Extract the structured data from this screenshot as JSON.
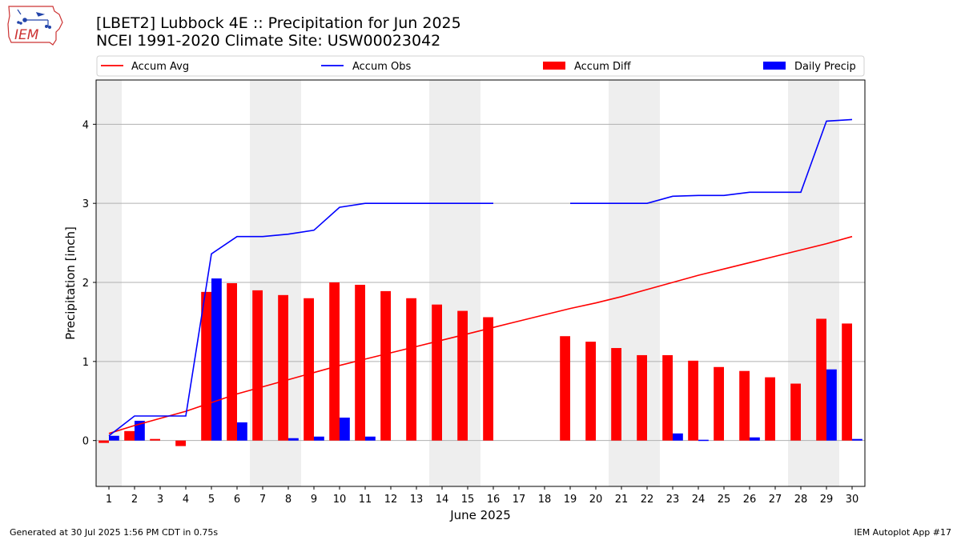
{
  "header": {
    "title_line1": "[LBET2] Lubbock 4E :: Precipitation for Jun 2025",
    "title_line2": "NCEI 1991-2020 Climate Site: USW00023042",
    "logo_text": "IEM"
  },
  "footer": {
    "generated": "Generated at 30 Jul 2025 1:56 PM CDT in 0.75s",
    "app": "IEM Autoplot App #17"
  },
  "colors": {
    "avg": "#ff0000",
    "obs": "#0000ff",
    "diff": "#ff0000",
    "daily": "#0000ff",
    "weekend_band": "#eeeeee",
    "grid": "#b0b0b0"
  },
  "chart_data": {
    "type": "bar",
    "xlabel": "June 2025",
    "ylabel": "Precipitation [inch]",
    "ylim": [
      -0.58,
      4.56
    ],
    "yticks": [
      0,
      1,
      2,
      3,
      4
    ],
    "x": [
      1,
      2,
      3,
      4,
      5,
      6,
      7,
      8,
      9,
      10,
      11,
      12,
      13,
      14,
      15,
      16,
      17,
      18,
      19,
      20,
      21,
      22,
      23,
      24,
      25,
      26,
      27,
      28,
      29,
      30
    ],
    "weekend_bands": [
      [
        1,
        1
      ],
      [
        7,
        8
      ],
      [
        14,
        15
      ],
      [
        21,
        22
      ],
      [
        28,
        29
      ]
    ],
    "grid": "horizontal",
    "legend": {
      "placement": "top",
      "entries": [
        {
          "label": "Accum Avg",
          "kind": "line",
          "color": "#ff0000"
        },
        {
          "label": "Accum Obs",
          "kind": "line",
          "color": "#0000ff"
        },
        {
          "label": "Accum Diff",
          "kind": "bar",
          "color": "#ff0000"
        },
        {
          "label": "Daily Precip",
          "kind": "bar",
          "color": "#0000ff"
        }
      ]
    },
    "series": [
      {
        "name": "Accum Avg",
        "type": "line",
        "values": [
          0.09,
          0.19,
          0.28,
          0.37,
          0.48,
          0.59,
          0.68,
          0.77,
          0.86,
          0.95,
          1.03,
          1.11,
          1.19,
          1.27,
          1.35,
          1.43,
          1.51,
          1.59,
          1.67,
          1.74,
          1.82,
          1.91,
          2.0,
          2.09,
          2.17,
          2.25,
          2.33,
          2.41,
          2.49,
          2.58
        ]
      },
      {
        "name": "Accum Obs",
        "type": "line",
        "values": [
          0.06,
          0.31,
          0.31,
          0.31,
          2.36,
          2.58,
          2.58,
          2.61,
          2.66,
          2.95,
          3.0,
          3.0,
          3.0,
          3.0,
          3.0,
          3.0,
          null,
          null,
          3.0,
          3.0,
          3.0,
          3.0,
          3.09,
          3.1,
          3.1,
          3.14,
          3.14,
          3.14,
          4.04,
          4.06
        ]
      },
      {
        "name": "Accum Diff",
        "type": "bar",
        "values": [
          -0.03,
          0.12,
          0.02,
          -0.07,
          1.88,
          1.99,
          1.9,
          1.84,
          1.8,
          2.0,
          1.97,
          1.89,
          1.8,
          1.72,
          1.64,
          1.56,
          null,
          null,
          1.32,
          1.25,
          1.17,
          1.08,
          1.08,
          1.01,
          0.93,
          0.88,
          0.8,
          0.72,
          1.54,
          1.48
        ]
      },
      {
        "name": "Daily Precip",
        "type": "bar",
        "values": [
          0.06,
          0.25,
          0.0,
          0.0,
          2.05,
          0.23,
          0.0,
          0.03,
          0.05,
          0.29,
          0.05,
          0.0,
          0.0,
          0.0,
          0.0,
          0.0,
          null,
          null,
          0.0,
          0.0,
          0.0,
          0.0,
          0.09,
          0.01,
          0.0,
          0.04,
          0.0,
          0.0,
          0.9,
          0.02
        ]
      }
    ]
  }
}
